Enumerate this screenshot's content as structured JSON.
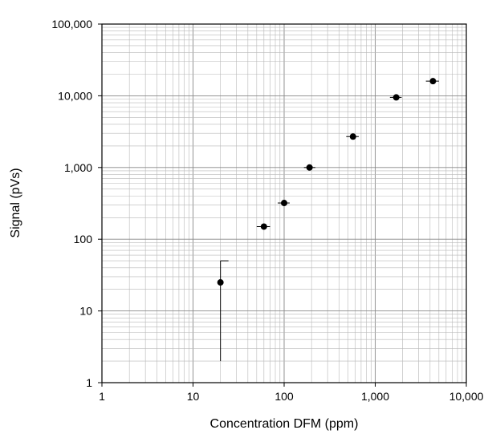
{
  "chart_data": {
    "type": "scatter",
    "title": "",
    "xlabel": "Concentration DFM (ppm)",
    "ylabel": "Signal (pVs)",
    "x_scale": "log",
    "y_scale": "log",
    "xlim": [
      1,
      10000
    ],
    "ylim": [
      1,
      100000
    ],
    "grid": true,
    "legend": "none",
    "x_tick_labels": [
      "1",
      "10",
      "100",
      "1,000",
      "10,000"
    ],
    "y_tick_labels": [
      "1",
      "10",
      "100",
      "1,000",
      "10,000",
      "100,000"
    ],
    "series": [
      {
        "marker_color": "#000000",
        "points": [
          {
            "x": 20,
            "y": 25,
            "y_err_low": 2,
            "y_err_high": 50
          },
          {
            "x": 60,
            "y": 150,
            "x_err_low": 50,
            "x_err_high": 70
          },
          {
            "x": 100,
            "y": 320,
            "x_err_low": 85,
            "x_err_high": 115
          },
          {
            "x": 190,
            "y": 1000,
            "x_err_low": 165,
            "x_err_high": 220
          },
          {
            "x": 570,
            "y": 2700,
            "x_err_low": 480,
            "x_err_high": 660
          },
          {
            "x": 1700,
            "y": 9500,
            "x_err_low": 1450,
            "x_err_high": 1950
          },
          {
            "x": 4300,
            "y": 16000,
            "x_err_low": 3600,
            "x_err_high": 5000
          }
        ]
      }
    ]
  }
}
